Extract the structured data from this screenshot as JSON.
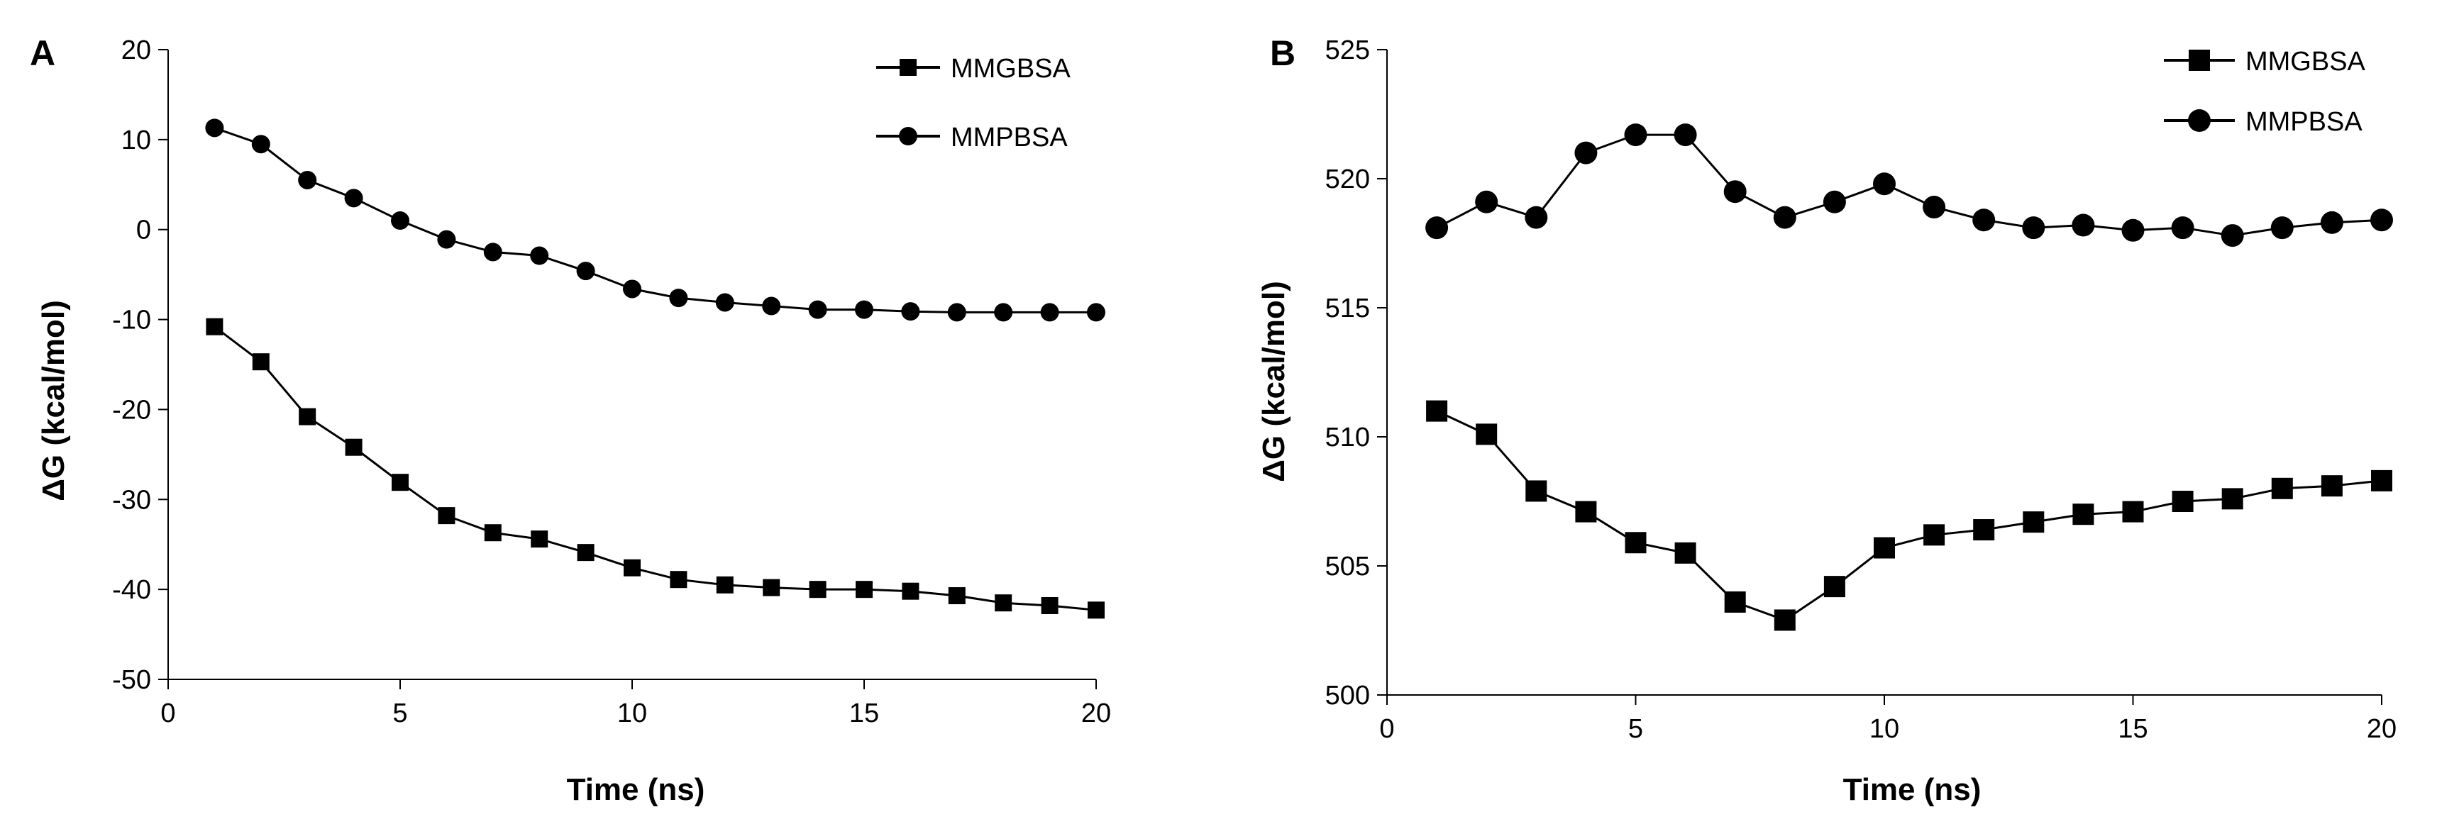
{
  "chart_data": [
    {
      "type": "line",
      "panel_label": "A",
      "xlabel": "Time (ns)",
      "ylabel": "ΔG (kcal/mol)",
      "xlim": [
        0,
        20
      ],
      "ylim": [
        -50,
        20
      ],
      "xticks": [
        0,
        5,
        10,
        15,
        20
      ],
      "yticks": [
        -50,
        -40,
        -30,
        -20,
        -10,
        0,
        10,
        20
      ],
      "grid": false,
      "legend_position": "top-right",
      "x": [
        1,
        2,
        3,
        4,
        5,
        6,
        7,
        8,
        9,
        10,
        11,
        12,
        13,
        14,
        15,
        16,
        17,
        18,
        19,
        20
      ],
      "series": [
        {
          "name": "MMGBSA",
          "marker": "square",
          "values": [
            -10.8,
            -14.7,
            -20.8,
            -24.2,
            -28.1,
            -31.8,
            -33.7,
            -34.4,
            -35.9,
            -37.6,
            -38.9,
            -39.5,
            -39.8,
            -40.0,
            -40.0,
            -40.2,
            -40.7,
            -41.5,
            -41.8,
            -42.3
          ]
        },
        {
          "name": "MMPBSA",
          "marker": "circle",
          "values": [
            11.3,
            9.5,
            5.5,
            3.5,
            1.0,
            -1.1,
            -2.5,
            -2.9,
            -4.6,
            -6.6,
            -7.6,
            -8.1,
            -8.5,
            -8.9,
            -8.9,
            -9.1,
            -9.2,
            -9.2,
            -9.2,
            -9.2
          ]
        }
      ]
    },
    {
      "type": "line",
      "panel_label": "B",
      "xlabel": "Time (ns)",
      "ylabel": "ΔG (kcal/mol)",
      "xlim": [
        0,
        20
      ],
      "ylim": [
        500,
        525
      ],
      "xticks": [
        0,
        5,
        10,
        15,
        20
      ],
      "yticks": [
        500,
        505,
        510,
        515,
        520,
        525
      ],
      "grid": false,
      "legend_position": "top-right",
      "x": [
        1,
        2,
        3,
        4,
        5,
        6,
        7,
        8,
        9,
        10,
        11,
        12,
        13,
        14,
        15,
        16,
        17,
        18,
        19,
        20
      ],
      "series": [
        {
          "name": "MMGBSA",
          "marker": "square",
          "values": [
            511.0,
            510.1,
            507.9,
            507.1,
            505.9,
            505.5,
            503.6,
            502.9,
            504.2,
            505.7,
            506.2,
            506.4,
            506.7,
            507.0,
            507.1,
            507.5,
            507.6,
            508.0,
            508.1,
            508.3
          ]
        },
        {
          "name": "MMPBSA",
          "marker": "circle",
          "values": [
            518.1,
            519.1,
            518.5,
            521.0,
            521.7,
            521.7,
            519.5,
            518.5,
            519.1,
            519.8,
            518.9,
            518.4,
            518.1,
            518.2,
            518.0,
            518.1,
            517.8,
            518.1,
            518.3,
            518.4
          ]
        }
      ]
    }
  ]
}
